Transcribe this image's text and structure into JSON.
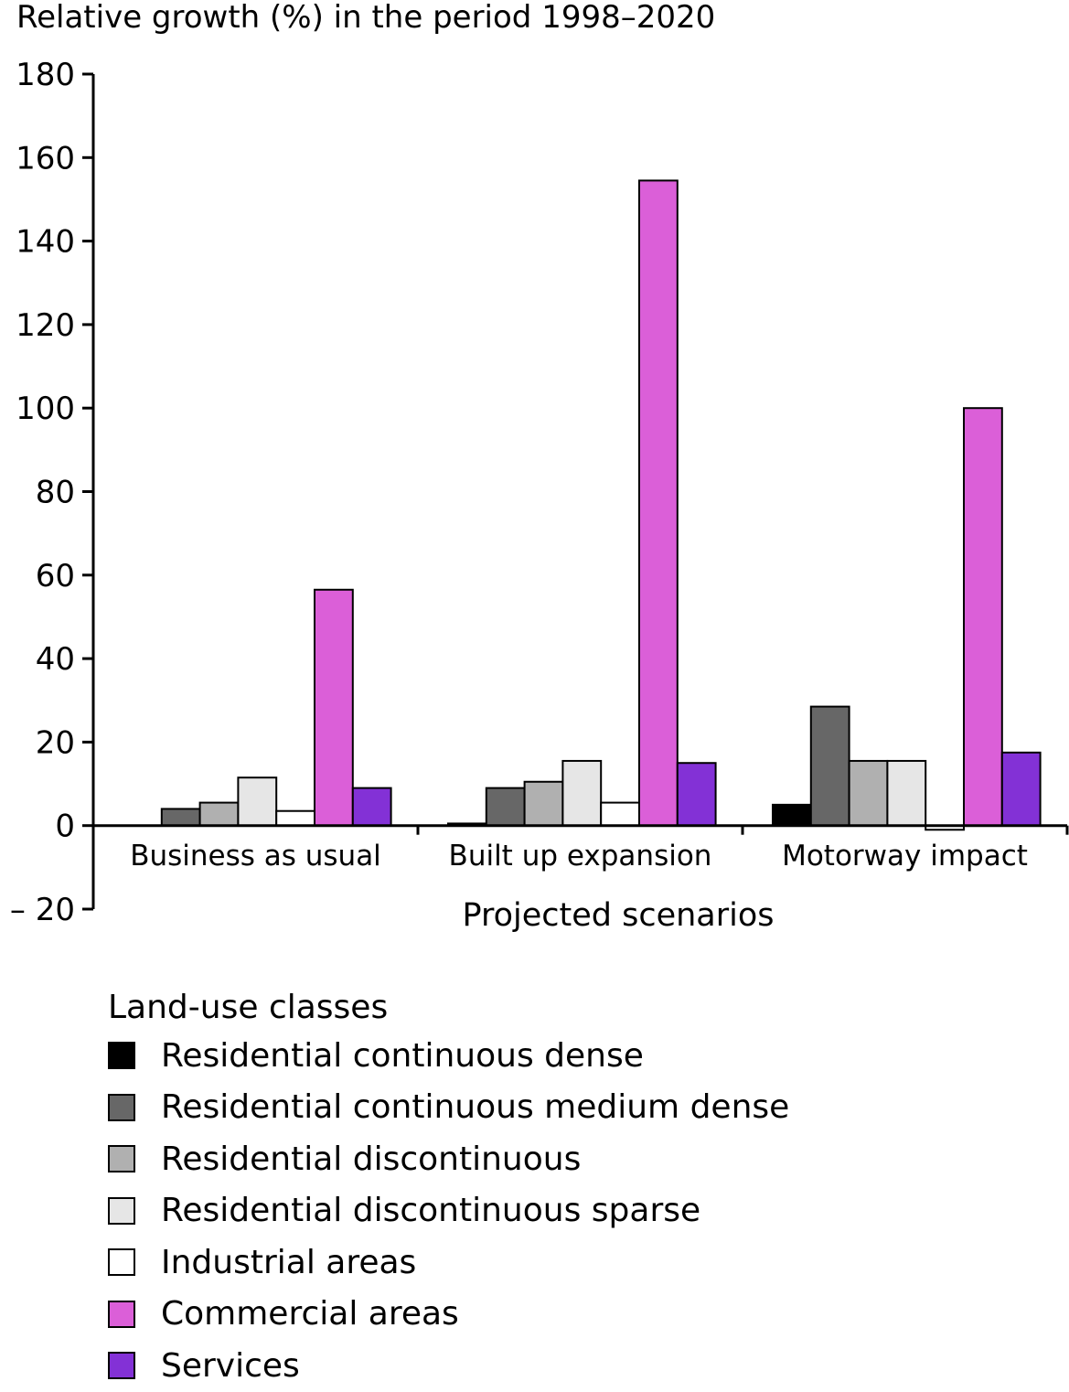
{
  "chart_data": {
    "type": "bar",
    "title": "",
    "ylabel": "Relative growth (%) in the period 1998–2020",
    "xlabel": "Projected scenarios",
    "ylim": [
      -20,
      180
    ],
    "yticks": [
      180,
      160,
      140,
      120,
      100,
      80,
      60,
      40,
      20,
      0,
      -20
    ],
    "ytick_labels": [
      "180",
      "160",
      "140",
      "120",
      "100",
      "80",
      "60",
      "40",
      "20",
      "0",
      "– 20"
    ],
    "categories": [
      "Business as usual",
      "Built up expansion",
      "Motorway impact"
    ],
    "legend_title": "Land-use classes",
    "legend_position": "bottom",
    "grid": false,
    "series": [
      {
        "name": "Residential continuous dense",
        "color": "#000000",
        "values": [
          0,
          0.5,
          5
        ]
      },
      {
        "name": "Residential continuous medium dense",
        "color": "#676767",
        "values": [
          4,
          9,
          28.5
        ]
      },
      {
        "name": "Residential discontinuous",
        "color": "#b0b0b0",
        "values": [
          5.5,
          10.5,
          15.5
        ]
      },
      {
        "name": "Residential discontinuous sparse",
        "color": "#e6e6e6",
        "values": [
          11.5,
          15.5,
          15.5
        ]
      },
      {
        "name": "Industrial areas",
        "color": "#ffffff",
        "values": [
          3.5,
          5.5,
          -1
        ]
      },
      {
        "name": "Commercial areas",
        "color": "#db5fd8",
        "values": [
          56.5,
          154.5,
          100
        ]
      },
      {
        "name": "Services",
        "color": "#8331d6",
        "values": [
          9,
          15,
          17.5
        ]
      }
    ]
  }
}
